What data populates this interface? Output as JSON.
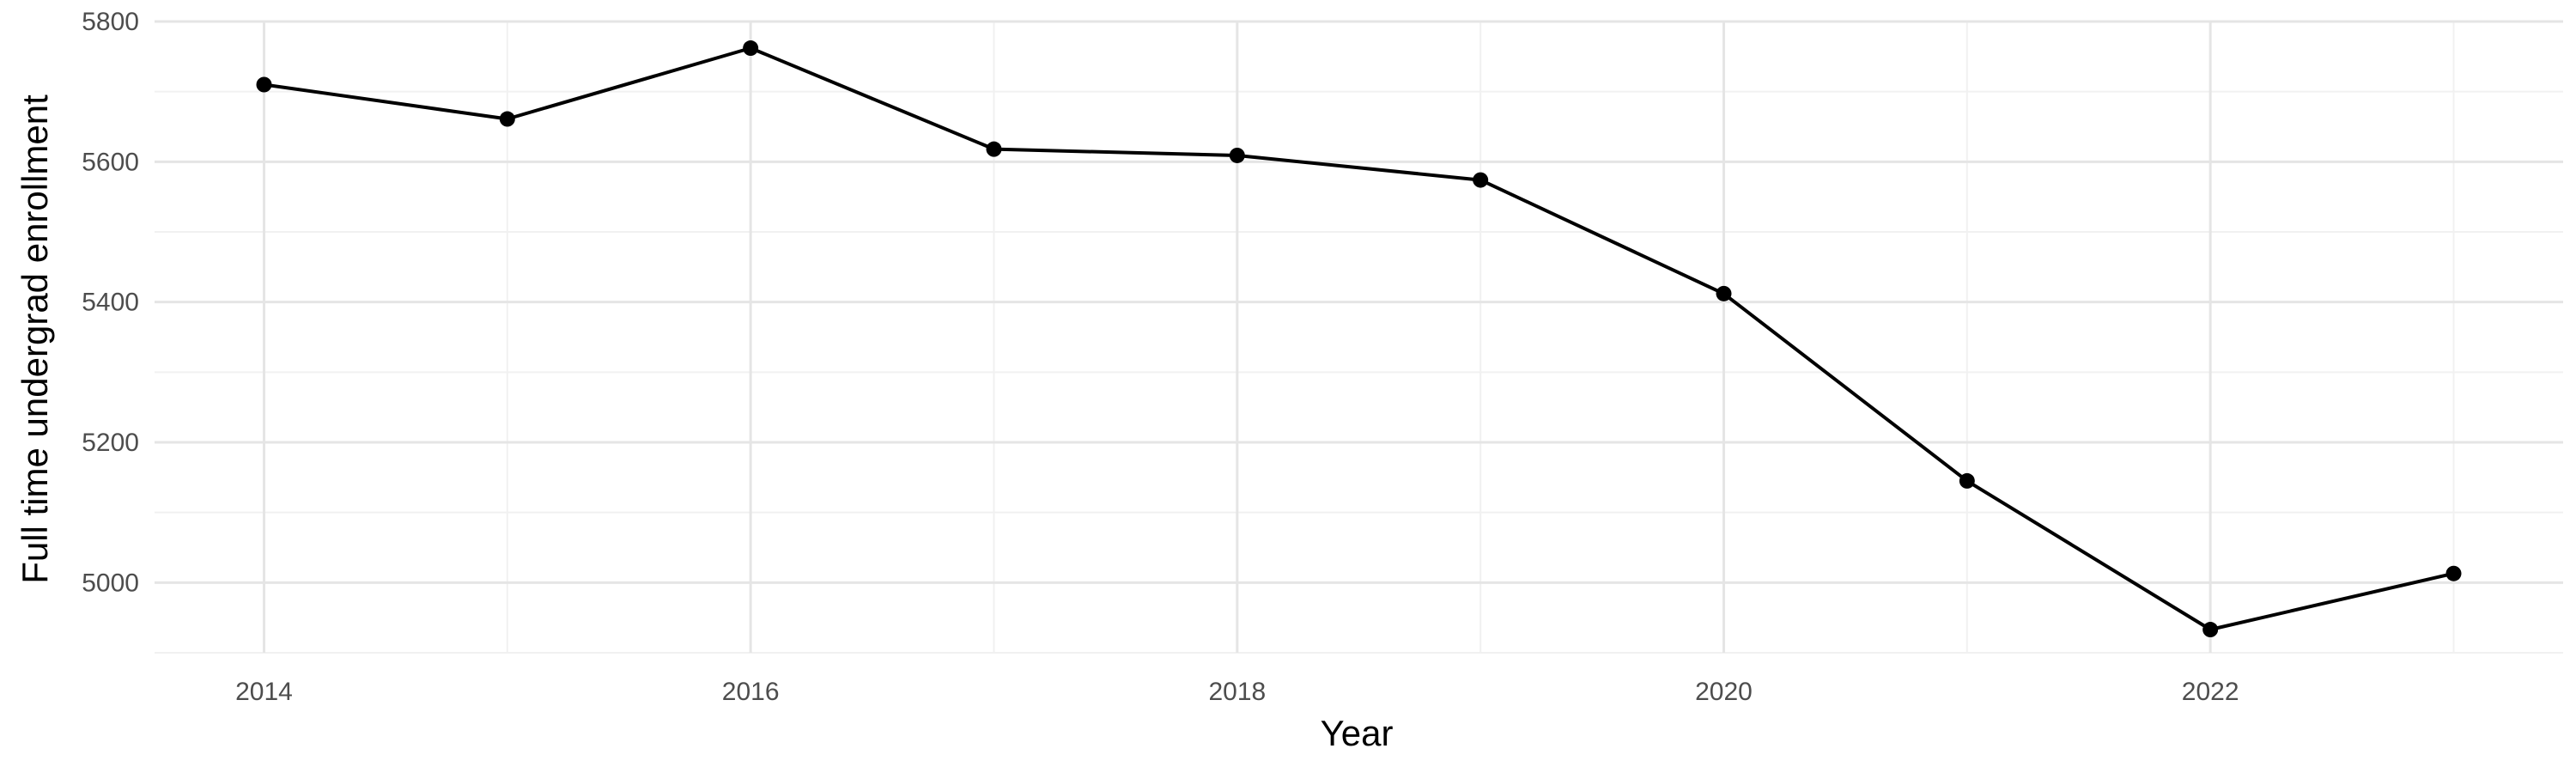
{
  "chart_data": {
    "type": "line",
    "title": "",
    "xlabel": "Year",
    "ylabel": "Full time undergrad enrollment",
    "x": [
      2014,
      2015,
      2016,
      2017,
      2018,
      2019,
      2020,
      2021,
      2022,
      2023
    ],
    "series": [
      {
        "values": [
          5710,
          5661,
          5762,
          5618,
          5609,
          5574,
          5412,
          5145,
          4933,
          5013
        ]
      }
    ],
    "xlim": [
      2013.55,
      2023.45
    ],
    "ylim": [
      4900,
      5800
    ],
    "x_ticks": [
      {
        "value": 2014,
        "label": "2014"
      },
      {
        "value": 2016,
        "label": "2016"
      },
      {
        "value": 2018,
        "label": "2018"
      },
      {
        "value": 2020,
        "label": "2020"
      },
      {
        "value": 2022,
        "label": "2022"
      }
    ],
    "y_ticks": [
      {
        "value": 5000,
        "label": "5000"
      },
      {
        "value": 5200,
        "label": "5200"
      },
      {
        "value": 5400,
        "label": "5400"
      },
      {
        "value": 5600,
        "label": "5600"
      },
      {
        "value": 5800,
        "label": "5800"
      }
    ],
    "x_minor": [
      2015,
      2017,
      2019,
      2021,
      2023
    ],
    "y_minor": [
      4900,
      5100,
      5300,
      5500,
      5700
    ],
    "grid": true,
    "legend": "none",
    "line_color": "#000000"
  }
}
